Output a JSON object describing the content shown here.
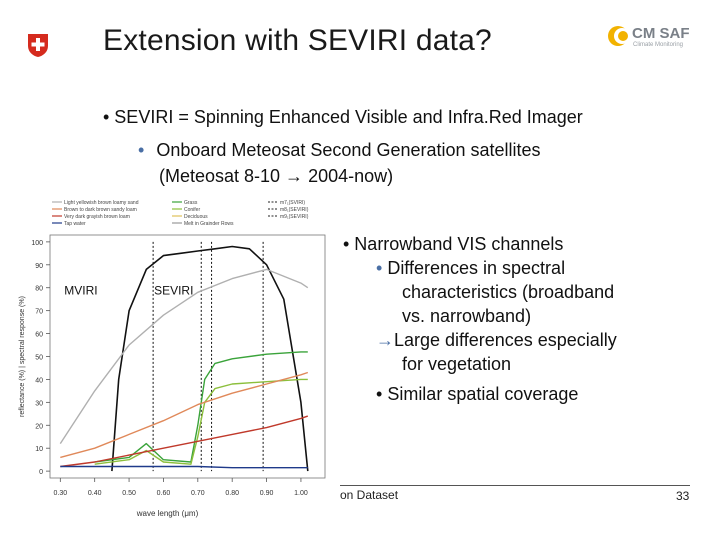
{
  "slide": {
    "title": "Extension with SEVIRI data?",
    "logo_right": {
      "name": "CM SAF",
      "subtitle": "Climate Monitoring"
    },
    "bullets": [
      "•  SEVIRI = Spinning Enhanced Visible and Infra.Red Imager"
    ],
    "sub_bullet": {
      "dot": "•",
      "line1": "Onboard Meteosat Second Generation satellites",
      "line2": "(Meteosat 8-10 → 2004-now)"
    },
    "right": {
      "l1": "•  Narrowband VIS channels",
      "l2_dot": "•",
      "l2": " Differences in spectral",
      "l3": "characteristics (broadband",
      "l4": "vs. narrowband)",
      "l5_arrow": "→",
      "l5": "Large differences especially",
      "l6": "for vegetation",
      "l7_dot": "•",
      "l7": " Similar spatial coverage"
    },
    "footer": {
      "left": "on Dataset",
      "page": "33"
    }
  },
  "chart_data": {
    "type": "line",
    "xlabel": "wave length (μm)",
    "ylabel": "reflectance (%) | spectral response (%)",
    "xlim": [
      0.27,
      1.07
    ],
    "ylim": [
      -3,
      103
    ],
    "xticks": [
      0.3,
      0.4,
      0.5,
      0.6,
      0.7,
      0.8,
      0.9,
      1.0
    ],
    "xtick_labels": [
      "0.30",
      "0.40",
      "0.50",
      "0.60",
      "0.70",
      "0.80",
      "0.90",
      "1.00"
    ],
    "yticks": [
      0,
      10,
      20,
      30,
      40,
      50,
      60,
      70,
      80,
      90,
      100
    ],
    "annotations": [
      {
        "text": "MVIRI",
        "x": 0.36,
        "y": 77
      },
      {
        "text": "SEVIRI",
        "x": 0.63,
        "y": 77
      }
    ],
    "legend_left": [
      "Light yellowish brown loamy sand",
      "Brown to dark brown sandy loam",
      "Very dark grayish brown loam",
      "Tap water"
    ],
    "legend_mid": [
      "Grass",
      "Conifer",
      "Deciduous",
      "Melt in Grainder Rows"
    ],
    "legend_right": [
      "m7₁(SVIRI)",
      "m8₁(SEVIRI)",
      "m9₁(SEVIRI)"
    ],
    "series": [
      {
        "name": "MVIRI response",
        "color": "#111111",
        "x": [
          0.45,
          0.47,
          0.5,
          0.55,
          0.6,
          0.65,
          0.7,
          0.75,
          0.8,
          0.85,
          0.9,
          0.95,
          1.0,
          1.02
        ],
        "y": [
          0,
          40,
          70,
          88,
          94,
          95,
          96,
          97,
          98,
          97,
          90,
          75,
          30,
          0
        ]
      },
      {
        "name": "Light yellowish brown loamy sand",
        "color": "#b0b0b0",
        "x": [
          0.3,
          0.4,
          0.5,
          0.6,
          0.7,
          0.8,
          0.9,
          1.0,
          1.02
        ],
        "y": [
          12,
          35,
          55,
          68,
          78,
          84,
          88,
          82,
          80
        ]
      },
      {
        "name": "Grass",
        "color": "#3aa33a",
        "x": [
          0.4,
          0.5,
          0.55,
          0.6,
          0.68,
          0.7,
          0.72,
          0.75,
          0.8,
          0.9,
          1.0,
          1.02
        ],
        "y": [
          4,
          6,
          12,
          5,
          4,
          20,
          40,
          47,
          49,
          51,
          52,
          52
        ]
      },
      {
        "name": "Conifer",
        "color": "#8cbf3c",
        "x": [
          0.4,
          0.5,
          0.55,
          0.6,
          0.68,
          0.7,
          0.72,
          0.75,
          0.8,
          0.9,
          1.0,
          1.02
        ],
        "y": [
          3,
          5,
          9,
          4,
          3,
          15,
          30,
          36,
          38,
          39,
          40,
          40
        ]
      },
      {
        "name": "Brown to dark brown sandy loam",
        "color": "#e0895a",
        "x": [
          0.3,
          0.4,
          0.5,
          0.6,
          0.7,
          0.8,
          0.9,
          1.0,
          1.02
        ],
        "y": [
          6,
          10,
          16,
          22,
          29,
          34,
          38,
          42,
          43
        ]
      },
      {
        "name": "Very dark grayish brown loam",
        "color": "#c0392b",
        "x": [
          0.3,
          0.4,
          0.5,
          0.6,
          0.7,
          0.8,
          0.9,
          1.0,
          1.02
        ],
        "y": [
          2,
          4,
          7,
          10,
          13,
          16,
          19,
          23,
          24
        ]
      },
      {
        "name": "Tap water",
        "color": "#1f3a8a",
        "x": [
          0.3,
          0.4,
          0.5,
          0.6,
          0.7,
          0.8,
          0.9,
          1.0,
          1.02
        ],
        "y": [
          2,
          2,
          2,
          2,
          2,
          1.5,
          1.5,
          1.5,
          1.5
        ]
      }
    ],
    "vlines": [
      {
        "name": "SEVIRI ch1 left",
        "x": 0.57,
        "color": "#111111"
      },
      {
        "name": "SEVIRI ch1 right",
        "x": 0.71,
        "color": "#111111"
      },
      {
        "name": "SEVIRI ch2 left",
        "x": 0.74,
        "color": "#111111"
      },
      {
        "name": "SEVIRI ch2 right",
        "x": 0.89,
        "color": "#111111"
      }
    ]
  }
}
